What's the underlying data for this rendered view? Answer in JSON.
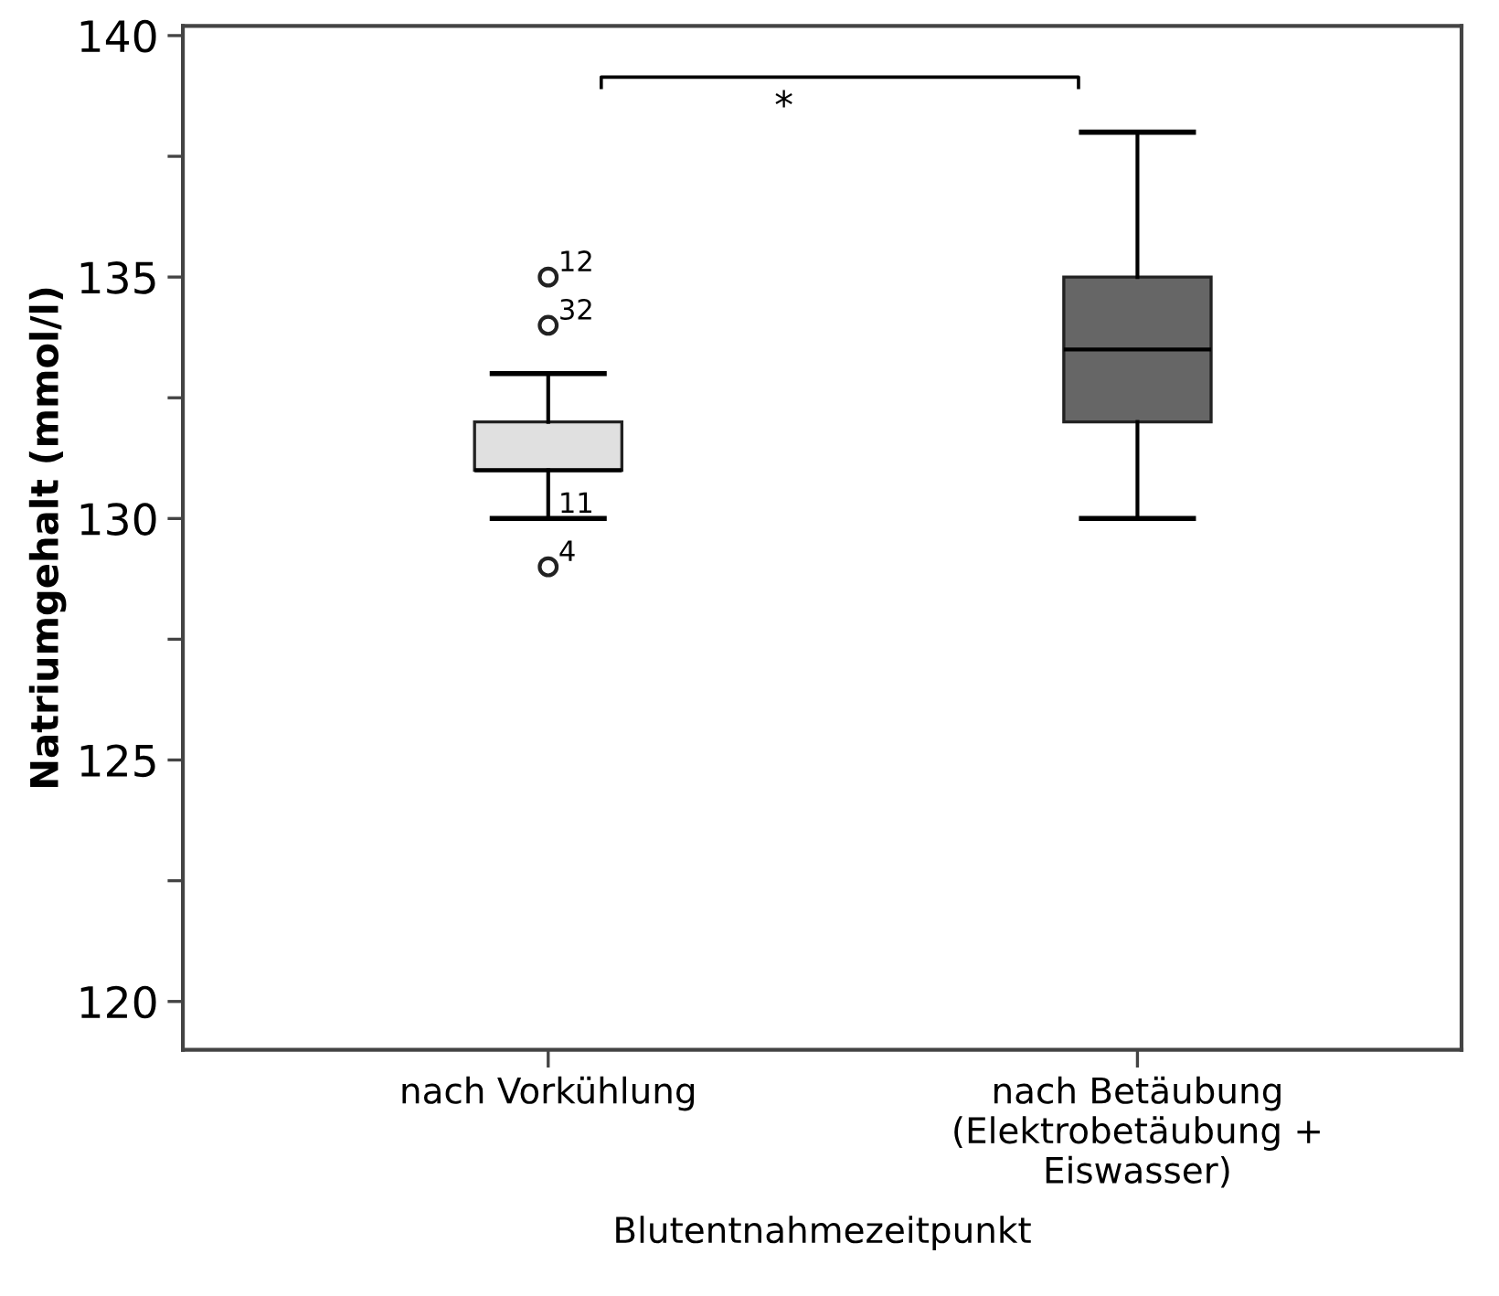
{
  "chart_data": {
    "type": "box",
    "xlabel": "Blutentnahmezeitpunkt",
    "ylabel": "Natriumgehalt (mmol/l)",
    "categories": [
      "nach Vorkühlung",
      "nach Betäubung\n(Elektrobetäubung +\nEiswasser)"
    ],
    "colors": [
      "#e0e0e0",
      "#666666"
    ],
    "boxes": [
      {
        "low": 130,
        "q1": 131,
        "median": 131,
        "q3": 132,
        "high": 133
      },
      {
        "low": 130,
        "q1": 132,
        "median": 133.5,
        "q3": 135,
        "high": 138
      }
    ],
    "series": [
      {
        "type": "scatter",
        "marker": "circle",
        "color": "#222222",
        "x": [
          "nach Vorkühlung",
          "nach Vorkühlung",
          "nach Vorkühlung"
        ],
        "values": [
          135,
          134,
          129
        ]
      }
    ],
    "ylim": [
      119,
      140.2
    ],
    "yticks": [
      120,
      {
        "value": 122.5,
        "label": null
      },
      125,
      {
        "value": 127.5,
        "label": null
      },
      130,
      {
        "value": 132.5,
        "label": null
      },
      135,
      {
        "value": 137.5,
        "label": null
      },
      140
    ],
    "grid": false,
    "annotations": [
      "*",
      {
        "text": "12",
        "x": "nach Vorkühlung",
        "y": 135
      },
      {
        "text": "32",
        "x": "nach Vorkühlung",
        "y": 134
      },
      {
        "text": "11",
        "x": "nach Vorkühlung",
        "y": 130
      },
      {
        "text": "4",
        "x": "nach Vorkühlung",
        "y": 129
      }
    ]
  }
}
